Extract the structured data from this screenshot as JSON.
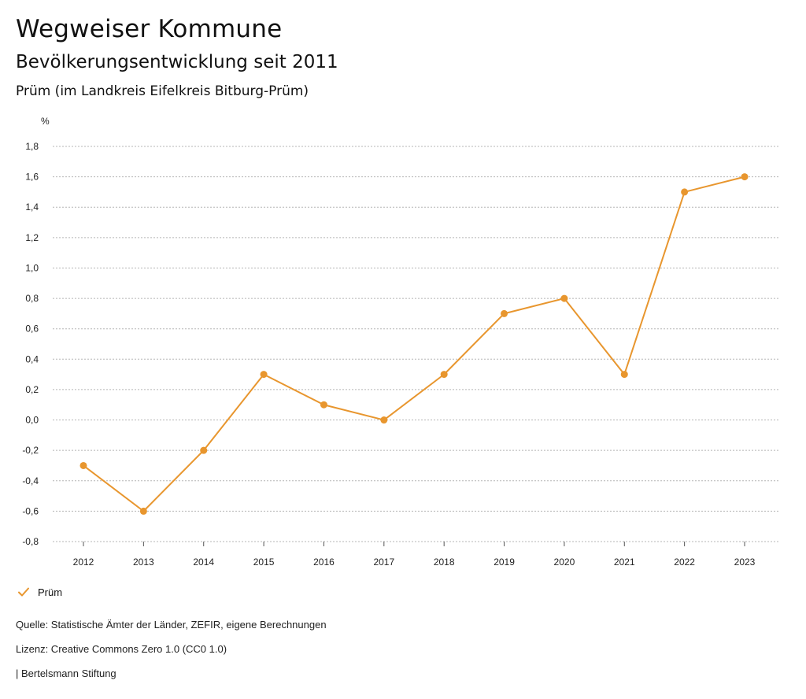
{
  "header": {
    "title": "Wegweiser Kommune",
    "subtitle": "Bevölkerungsentwicklung seit 2011",
    "region": "Prüm (im Landkreis Eifelkreis Bitburg-Prüm)"
  },
  "legend": {
    "label": "Prüm",
    "icon": "check-icon"
  },
  "footer": {
    "source": "Quelle: Statistische Ämter der Länder, ZEFIR, eigene Berechnungen",
    "license": "Lizenz: Creative Commons Zero 1.0 (CC0 1.0)",
    "credit": "| Bertelsmann Stiftung"
  },
  "colors": {
    "series": "#e8962e",
    "grid": "#b5b5b5"
  },
  "chart_data": {
    "type": "line",
    "title": "Bevölkerungsentwicklung seit 2011",
    "ylabel": "%",
    "xlabel": "",
    "ylim": [
      -0.8,
      1.8
    ],
    "yticks": [
      -0.8,
      -0.6,
      -0.4,
      -0.2,
      0.0,
      0.2,
      0.4,
      0.6,
      0.8,
      1.0,
      1.2,
      1.4,
      1.6,
      1.8
    ],
    "ytick_labels": [
      "-0,8",
      "-0,6",
      "-0,4",
      "-0,2",
      "0,0",
      "0,2",
      "0,4",
      "0,6",
      "0,8",
      "1,0",
      "1,2",
      "1,4",
      "1,6",
      "1,8"
    ],
    "categories": [
      "2012",
      "2013",
      "2014",
      "2015",
      "2016",
      "2017",
      "2018",
      "2019",
      "2020",
      "2021",
      "2022",
      "2023"
    ],
    "series": [
      {
        "name": "Prüm",
        "values": [
          -0.3,
          -0.6,
          -0.2,
          0.3,
          0.1,
          0.0,
          0.3,
          0.7,
          0.8,
          0.3,
          1.5,
          1.6
        ]
      }
    ],
    "grid": true,
    "legend_position": "bottom-left"
  }
}
